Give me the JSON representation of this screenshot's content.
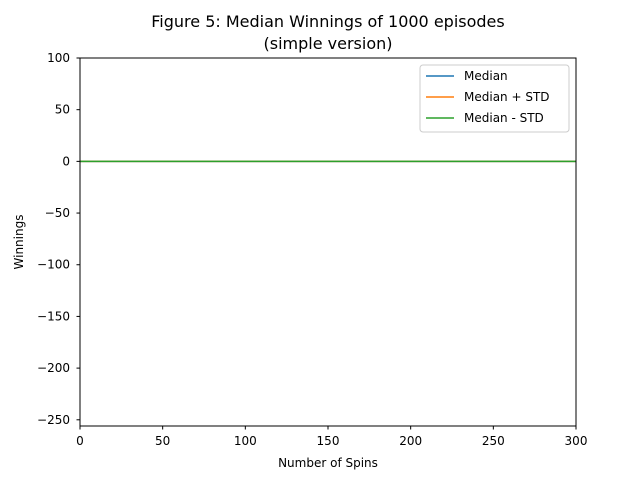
{
  "chart_data": {
    "type": "line",
    "title": [
      "Figure 5: Median Winnings of 1000 episodes",
      "(simple version)"
    ],
    "xlabel": "Number of Spins",
    "ylabel": "Winnings",
    "xlim": [
      0,
      300
    ],
    "ylim": [
      -256,
      100
    ],
    "xticks": [
      0,
      50,
      100,
      150,
      200,
      250,
      300
    ],
    "xtick_labels": [
      "0",
      "50",
      "100",
      "150",
      "200",
      "250",
      "300"
    ],
    "yticks": [
      100,
      50,
      0,
      -50,
      -100,
      -150,
      -200,
      -250
    ],
    "ytick_labels": [
      "100",
      "50",
      "0",
      "−50",
      "−100",
      "−150",
      "−200",
      "−250"
    ],
    "grid": false,
    "legend_position": "upper right",
    "series": [
      {
        "name": "Median",
        "color": "#1f77b4",
        "x": [
          0,
          300
        ],
        "values": [
          0,
          0
        ]
      },
      {
        "name": "Median + STD",
        "color": "#ff7f0e",
        "x": [
          0,
          300
        ],
        "values": [
          0,
          0
        ]
      },
      {
        "name": "Median - STD",
        "color": "#2ca02c",
        "x": [
          0,
          300
        ],
        "values": [
          0,
          0
        ]
      }
    ]
  }
}
